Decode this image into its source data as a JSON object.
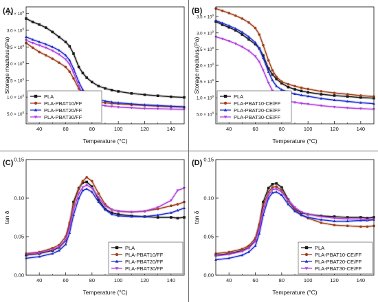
{
  "figure": {
    "divider_color": "#6a6a6a"
  },
  "chart_data": [
    {
      "panel_label": "(A)",
      "type": "line",
      "xlabel": "Temperature (°C)",
      "ylabel": "Storage modulus (Pa)",
      "xlim": [
        30,
        150
      ],
      "ylim": [
        200000000,
        3700000000
      ],
      "xticks": [
        40,
        60,
        80,
        100,
        120,
        140
      ],
      "yticks": [
        {
          "v": 500000000,
          "m": "5.0",
          "e": "8"
        },
        {
          "v": 1000000000,
          "m": "1.0",
          "e": "9"
        },
        {
          "v": 1500000000,
          "m": "1.5",
          "e": "9"
        },
        {
          "v": 2000000000,
          "m": "2.0",
          "e": "9"
        },
        {
          "v": 2500000000,
          "m": "2.5",
          "e": "9"
        },
        {
          "v": 3000000000,
          "m": "3.0",
          "e": "9"
        },
        {
          "v": 3500000000,
          "m": "3.5",
          "e": "9"
        }
      ],
      "legend": {
        "placement": "bottom-left"
      },
      "series": [
        {
          "name": "PLA",
          "color": "#1a1a1a",
          "marker": "square",
          "x": [
            30,
            35,
            40,
            45,
            50,
            55,
            60,
            63,
            66,
            70,
            73,
            76,
            80,
            85,
            90,
            95,
            100,
            110,
            120,
            130,
            140,
            150
          ],
          "y": [
            3350000000,
            3250000000,
            3170000000,
            3080000000,
            2950000000,
            2800000000,
            2650000000,
            2520000000,
            2300000000,
            1900000000,
            1720000000,
            1580000000,
            1450000000,
            1330000000,
            1260000000,
            1210000000,
            1170000000,
            1110000000,
            1070000000,
            1040000000,
            1010000000,
            990000000
          ]
        },
        {
          "name": "PLA-PBAT10/FF",
          "color": "#a0401c",
          "marker": "circle",
          "x": [
            30,
            35,
            40,
            45,
            50,
            55,
            60,
            63,
            66,
            70,
            73,
            76,
            80,
            85,
            90,
            95,
            100,
            110,
            120,
            130,
            140,
            150
          ],
          "y": [
            2620000000,
            2480000000,
            2350000000,
            2250000000,
            2150000000,
            2030000000,
            1900000000,
            1760000000,
            1560000000,
            1250000000,
            1080000000,
            960000000,
            890000000,
            850000000,
            830000000,
            810000000,
            800000000,
            770000000,
            750000000,
            730000000,
            710000000,
            700000000
          ]
        },
        {
          "name": "PLA-PBAT20/FF",
          "color": "#1f2fd0",
          "marker": "triangle-up",
          "x": [
            30,
            35,
            40,
            45,
            50,
            55,
            60,
            63,
            66,
            70,
            73,
            76,
            80,
            85,
            90,
            95,
            100,
            110,
            120,
            130,
            140,
            150
          ],
          "y": [
            2800000000,
            2720000000,
            2650000000,
            2580000000,
            2500000000,
            2400000000,
            2250000000,
            2100000000,
            1850000000,
            1450000000,
            1220000000,
            1080000000,
            980000000,
            920000000,
            880000000,
            850000000,
            830000000,
            800000000,
            770000000,
            750000000,
            730000000,
            710000000
          ]
        },
        {
          "name": "PLA-PBAT30/FF",
          "color": "#b040e0",
          "marker": "triangle-down",
          "x": [
            30,
            35,
            40,
            45,
            50,
            55,
            60,
            63,
            66,
            70,
            73,
            76,
            80,
            85,
            90,
            95,
            100,
            110,
            120,
            130,
            140,
            150
          ],
          "y": [
            2700000000,
            2620000000,
            2550000000,
            2480000000,
            2390000000,
            2280000000,
            2130000000,
            1980000000,
            1730000000,
            1330000000,
            1100000000,
            940000000,
            840000000,
            780000000,
            740000000,
            720000000,
            700000000,
            680000000,
            660000000,
            650000000,
            640000000,
            630000000
          ]
        }
      ]
    },
    {
      "panel_label": "(B)",
      "type": "line",
      "xlabel": "Temperature (°C)",
      "ylabel": "Storage modulus (Pa)",
      "xlim": [
        30,
        150
      ],
      "ylim": [
        200000000,
        3800000000
      ],
      "xticks": [
        40,
        60,
        80,
        100,
        120,
        140
      ],
      "yticks": [
        {
          "v": 500000000,
          "m": "5.0",
          "e": "8"
        },
        {
          "v": 1000000000,
          "m": "1.0",
          "e": "9"
        },
        {
          "v": 1500000000,
          "m": "1.5",
          "e": "9"
        },
        {
          "v": 2000000000,
          "m": "2.0",
          "e": "9"
        },
        {
          "v": 2500000000,
          "m": "2.5",
          "e": "9"
        },
        {
          "v": 3000000000,
          "m": "3.0",
          "e": "9"
        },
        {
          "v": 3500000000,
          "m": "3.5",
          "e": "9"
        }
      ],
      "legend": {
        "placement": "bottom-left"
      },
      "series": [
        {
          "name": "PLA",
          "color": "#1a1a1a",
          "marker": "square",
          "x": [
            30,
            35,
            40,
            45,
            50,
            55,
            60,
            63,
            66,
            70,
            73,
            76,
            80,
            85,
            90,
            95,
            100,
            110,
            120,
            130,
            140,
            150
          ],
          "y": [
            3350000000,
            3250000000,
            3170000000,
            3080000000,
            2950000000,
            2800000000,
            2650000000,
            2520000000,
            2300000000,
            1900000000,
            1720000000,
            1580000000,
            1450000000,
            1330000000,
            1260000000,
            1210000000,
            1170000000,
            1110000000,
            1070000000,
            1040000000,
            1010000000,
            990000000
          ]
        },
        {
          "name": "PLA-PBAT10-CE/FF",
          "color": "#a0401c",
          "marker": "circle",
          "x": [
            30,
            35,
            40,
            45,
            50,
            55,
            60,
            63,
            66,
            70,
            73,
            76,
            80,
            85,
            90,
            95,
            100,
            110,
            120,
            130,
            140,
            150
          ],
          "y": [
            3750000000,
            3680000000,
            3610000000,
            3530000000,
            3440000000,
            3320000000,
            3150000000,
            2950000000,
            2620000000,
            2150000000,
            1850000000,
            1650000000,
            1500000000,
            1420000000,
            1360000000,
            1310000000,
            1270000000,
            1200000000,
            1150000000,
            1110000000,
            1070000000,
            1040000000
          ]
        },
        {
          "name": "PLA-PBAT20-CE/FF",
          "color": "#1f2fd0",
          "marker": "triangle-up",
          "x": [
            30,
            35,
            40,
            45,
            50,
            55,
            60,
            63,
            66,
            70,
            73,
            76,
            80,
            85,
            90,
            95,
            100,
            110,
            120,
            130,
            140,
            150
          ],
          "y": [
            3380000000,
            3300000000,
            3220000000,
            3130000000,
            3020000000,
            2880000000,
            2700000000,
            2520000000,
            2220000000,
            1800000000,
            1540000000,
            1360000000,
            1250000000,
            1180000000,
            1120000000,
            1080000000,
            1050000000,
            980000000,
            930000000,
            890000000,
            850000000,
            820000000
          ]
        },
        {
          "name": "PLA-PBAT30-CE/FF",
          "color": "#b040e0",
          "marker": "triangle-down",
          "x": [
            30,
            35,
            40,
            45,
            50,
            55,
            60,
            63,
            66,
            70,
            73,
            76,
            80,
            85,
            90,
            95,
            100,
            110,
            120,
            130,
            140,
            150
          ],
          "y": [
            2880000000,
            2820000000,
            2750000000,
            2670000000,
            2570000000,
            2450000000,
            2280000000,
            2110000000,
            1850000000,
            1460000000,
            1220000000,
            1060000000,
            960000000,
            900000000,
            860000000,
            830000000,
            810000000,
            760000000,
            720000000,
            690000000,
            670000000,
            650000000
          ]
        }
      ]
    },
    {
      "panel_label": "(C)",
      "type": "line",
      "xlabel": "Temperature (°C)",
      "ylabel": "tan δ",
      "xlim": [
        30,
        150
      ],
      "ylim": [
        0,
        0.15
      ],
      "xticks": [
        40,
        60,
        80,
        100,
        120,
        140
      ],
      "yticks": [
        {
          "v": 0.0,
          "t": "0.00"
        },
        {
          "v": 0.05,
          "t": "0.05"
        },
        {
          "v": 0.1,
          "t": "0.10"
        },
        {
          "v": 0.15,
          "t": "0.15"
        }
      ],
      "legend": {
        "placement": "bottom-right"
      },
      "series": [
        {
          "name": "PLA",
          "color": "#1a1a1a",
          "marker": "square",
          "x": [
            30,
            40,
            50,
            55,
            60,
            63,
            66,
            70,
            73,
            76,
            80,
            85,
            90,
            95,
            100,
            110,
            120,
            130,
            140,
            145,
            150
          ],
          "y": [
            0.026,
            0.028,
            0.032,
            0.036,
            0.045,
            0.065,
            0.095,
            0.113,
            0.12,
            0.121,
            0.115,
            0.098,
            0.086,
            0.081,
            0.079,
            0.077,
            0.076,
            0.075,
            0.075,
            0.074,
            0.075
          ]
        },
        {
          "name": "PLA-PBAT10/FF",
          "color": "#a0401c",
          "marker": "circle",
          "x": [
            30,
            40,
            50,
            55,
            60,
            63,
            66,
            70,
            73,
            76,
            80,
            85,
            90,
            95,
            100,
            110,
            120,
            130,
            140,
            145,
            150
          ],
          "y": [
            0.028,
            0.03,
            0.035,
            0.039,
            0.05,
            0.068,
            0.092,
            0.112,
            0.122,
            0.127,
            0.122,
            0.106,
            0.092,
            0.085,
            0.083,
            0.082,
            0.083,
            0.086,
            0.09,
            0.092,
            0.095
          ]
        },
        {
          "name": "PLA-PBAT20/FF",
          "color": "#1f2fd0",
          "marker": "triangle-up",
          "x": [
            30,
            40,
            50,
            55,
            60,
            63,
            66,
            70,
            73,
            76,
            80,
            85,
            90,
            95,
            100,
            110,
            120,
            130,
            140,
            145,
            150
          ],
          "y": [
            0.022,
            0.024,
            0.028,
            0.032,
            0.04,
            0.055,
            0.078,
            0.1,
            0.11,
            0.112,
            0.108,
            0.095,
            0.085,
            0.079,
            0.077,
            0.076,
            0.076,
            0.078,
            0.081,
            0.084,
            0.087
          ]
        },
        {
          "name": "PLA-PBAT30/FF",
          "color": "#b040e0",
          "marker": "triangle-down",
          "x": [
            30,
            40,
            50,
            55,
            60,
            63,
            66,
            70,
            73,
            76,
            80,
            85,
            90,
            95,
            100,
            110,
            120,
            130,
            140,
            145,
            150
          ],
          "y": [
            0.027,
            0.029,
            0.033,
            0.037,
            0.046,
            0.062,
            0.085,
            0.106,
            0.114,
            0.117,
            0.113,
            0.101,
            0.09,
            0.085,
            0.083,
            0.082,
            0.083,
            0.088,
            0.097,
            0.11,
            0.113
          ]
        }
      ]
    },
    {
      "panel_label": "(D)",
      "type": "line",
      "xlabel": "Temperature (°C)",
      "ylabel": "tan δ",
      "xlim": [
        30,
        150
      ],
      "ylim": [
        0,
        0.15
      ],
      "xticks": [
        40,
        60,
        80,
        100,
        120,
        140
      ],
      "yticks": [
        {
          "v": 0.0,
          "t": "0.00"
        },
        {
          "v": 0.05,
          "t": "0.05"
        },
        {
          "v": 0.1,
          "t": "0.10"
        },
        {
          "v": 0.15,
          "t": "0.15"
        }
      ],
      "legend": {
        "placement": "bottom-right"
      },
      "series": [
        {
          "name": "PLA",
          "color": "#1a1a1a",
          "marker": "square",
          "x": [
            30,
            40,
            50,
            55,
            60,
            63,
            66,
            70,
            73,
            76,
            80,
            85,
            90,
            95,
            100,
            110,
            120,
            130,
            140,
            145,
            150
          ],
          "y": [
            0.026,
            0.028,
            0.032,
            0.036,
            0.045,
            0.065,
            0.095,
            0.113,
            0.118,
            0.119,
            0.114,
            0.098,
            0.086,
            0.081,
            0.079,
            0.077,
            0.076,
            0.075,
            0.075,
            0.074,
            0.075
          ]
        },
        {
          "name": "PLA-PBAT10-CE/FF",
          "color": "#a0401c",
          "marker": "circle",
          "x": [
            30,
            40,
            50,
            55,
            60,
            63,
            66,
            70,
            73,
            76,
            80,
            85,
            90,
            95,
            100,
            110,
            120,
            130,
            140,
            145,
            150
          ],
          "y": [
            0.028,
            0.03,
            0.034,
            0.038,
            0.048,
            0.066,
            0.09,
            0.108,
            0.114,
            0.115,
            0.11,
            0.096,
            0.085,
            0.078,
            0.074,
            0.068,
            0.065,
            0.064,
            0.063,
            0.063,
            0.064
          ]
        },
        {
          "name": "PLA-PBAT20-CE/FF",
          "color": "#1f2fd0",
          "marker": "triangle-up",
          "x": [
            30,
            40,
            50,
            55,
            60,
            63,
            66,
            70,
            73,
            76,
            80,
            85,
            90,
            95,
            100,
            110,
            120,
            130,
            140,
            145,
            150
          ],
          "y": [
            0.02,
            0.022,
            0.026,
            0.03,
            0.038,
            0.054,
            0.078,
            0.1,
            0.107,
            0.108,
            0.104,
            0.092,
            0.083,
            0.078,
            0.075,
            0.072,
            0.07,
            0.07,
            0.071,
            0.071,
            0.072
          ]
        },
        {
          "name": "PLA-PBAT30-CE/FF",
          "color": "#b040e0",
          "marker": "triangle-down",
          "x": [
            30,
            40,
            50,
            55,
            60,
            63,
            66,
            70,
            73,
            76,
            80,
            85,
            90,
            95,
            100,
            110,
            120,
            130,
            140,
            145,
            150
          ],
          "y": [
            0.025,
            0.027,
            0.031,
            0.035,
            0.044,
            0.06,
            0.084,
            0.104,
            0.111,
            0.112,
            0.108,
            0.097,
            0.088,
            0.082,
            0.079,
            0.076,
            0.074,
            0.073,
            0.073,
            0.072,
            0.073
          ]
        }
      ]
    }
  ]
}
